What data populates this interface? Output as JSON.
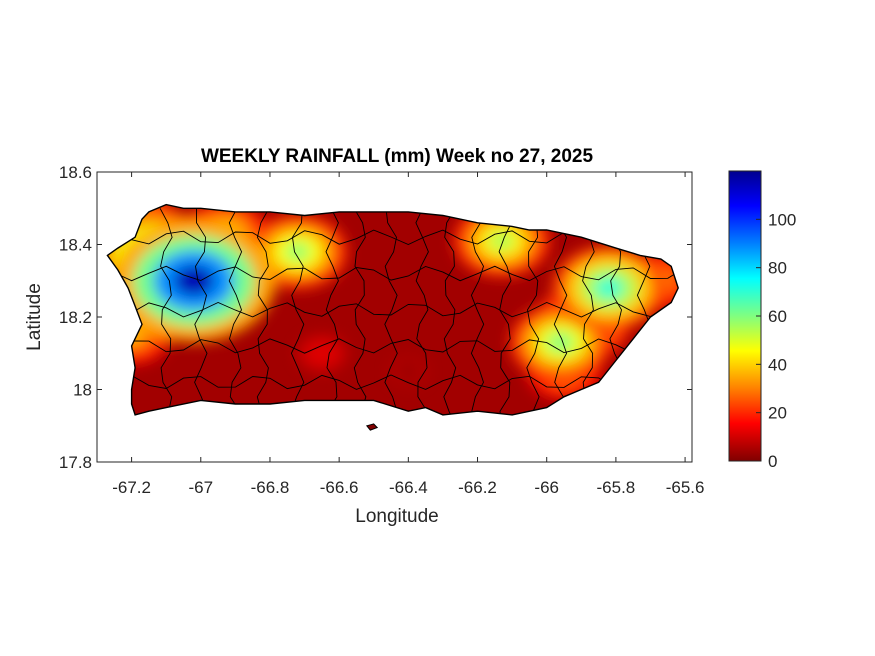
{
  "chart_data": {
    "type": "heatmap",
    "title": "WEEKLY RAINFALL (mm) Week no 27, 2025",
    "xlabel": "Longitude",
    "ylabel": "Latitude",
    "xlim": [
      -67.3,
      -65.58
    ],
    "ylim": [
      17.8,
      18.6
    ],
    "x_ticks": [
      "-67.2",
      "-67",
      "-66.8",
      "-66.6",
      "-66.4",
      "-66.2",
      "-66",
      "-65.8",
      "-65.6"
    ],
    "x_tick_values": [
      -67.2,
      -67.0,
      -66.8,
      -66.6,
      -66.4,
      -66.2,
      -66.0,
      -65.8,
      -65.6
    ],
    "y_ticks": [
      "17.8",
      "18",
      "18.2",
      "18.4",
      "18.6"
    ],
    "y_tick_values": [
      17.8,
      18.0,
      18.2,
      18.4,
      18.6
    ],
    "colorbar": {
      "range": [
        0,
        120
      ],
      "ticks": [
        "0",
        "20",
        "40",
        "60",
        "80",
        "100"
      ],
      "tick_values": [
        0,
        20,
        40,
        60,
        80,
        100
      ],
      "colormap": "jet-reversed",
      "colors": [
        "#800000",
        "#ff0000",
        "#ff8000",
        "#ffff00",
        "#80ff80",
        "#00ffff",
        "#0080ff",
        "#0000ff",
        "#00008f"
      ]
    },
    "rain_centers": [
      {
        "lon": -67.02,
        "lat": 18.3,
        "value": 115
      },
      {
        "lon": -67.12,
        "lat": 18.36,
        "value": 85
      },
      {
        "lon": -67.18,
        "lat": 18.45,
        "value": 45
      },
      {
        "lon": -66.93,
        "lat": 18.43,
        "value": 45
      },
      {
        "lon": -66.72,
        "lat": 18.38,
        "value": 58
      },
      {
        "lon": -66.13,
        "lat": 18.41,
        "value": 55
      },
      {
        "lon": -65.96,
        "lat": 18.13,
        "value": 60
      },
      {
        "lon": -65.82,
        "lat": 18.28,
        "value": 70
      },
      {
        "lon": -65.9,
        "lat": 18.18,
        "value": 55
      },
      {
        "lon": -67.2,
        "lat": 18.15,
        "value": 38
      },
      {
        "lon": -67.26,
        "lat": 18.36,
        "value": 30
      },
      {
        "lon": -65.95,
        "lat": 18.05,
        "value": 35
      },
      {
        "lon": -65.68,
        "lat": 18.3,
        "value": 35
      },
      {
        "lon": -66.65,
        "lat": 18.1,
        "value": 12
      },
      {
        "lon": -66.4,
        "lat": 18.05,
        "value": 2
      }
    ]
  }
}
